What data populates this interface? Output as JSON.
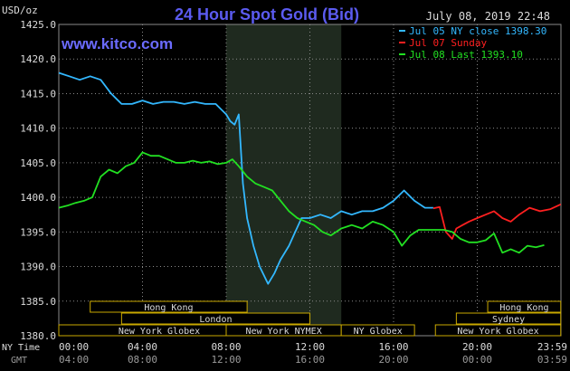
{
  "header": {
    "title": "24 Hour Spot Gold (Bid)",
    "unit": "USD/oz",
    "datetime": "July 08, 2019 22:48",
    "brand": "www.kitco.com"
  },
  "colors": {
    "background": "#000000",
    "grid": "#8a8a8a",
    "text": "#dcdcdc",
    "blue": "#33b8ff",
    "red": "#ff2020",
    "green": "#22e022",
    "shade": "#1f2a1f",
    "market_box": "#c9a800"
  },
  "chart_data": {
    "type": "line",
    "title": "24 Hour Spot Gold (Bid)",
    "ylabel": "USD/oz",
    "ylim": [
      1380,
      1425
    ],
    "yticks": [
      "1425.0",
      "1420.0",
      "1415.0",
      "1410.0",
      "1405.0",
      "1400.0",
      "1395.0",
      "1390.0",
      "1385.0",
      "1380.0"
    ],
    "xlim": [
      0,
      24
    ],
    "xticks_ny": [
      "00:00",
      "04:00",
      "08:00",
      "12:00",
      "16:00",
      "20:00",
      "23:59"
    ],
    "xticks_gmt": [
      "04:00",
      "08:00",
      "12:00",
      "16:00",
      "20:00",
      "00:00",
      "03:59"
    ],
    "xaxis_labels": [
      "NY Time",
      "GMT"
    ],
    "grid": true,
    "legend_position": "top-right",
    "series": [
      {
        "name": "Jul 05 NY close 1398.30",
        "color": "#33b8ff",
        "x": [
          0,
          0.5,
          1,
          1.5,
          2,
          2.5,
          3,
          3.5,
          4,
          4.5,
          5,
          5.5,
          6,
          6.5,
          7,
          7.5,
          8,
          8.2,
          8.4,
          8.6,
          8.8,
          9,
          9.3,
          9.6,
          10,
          10.3,
          10.6,
          11,
          11.3,
          11.6,
          12,
          12.5,
          13,
          13.5,
          14,
          14.5,
          15,
          15.5,
          16,
          16.5,
          17,
          17.5,
          17.9
        ],
        "y": [
          1418.0,
          1417.5,
          1417.0,
          1417.5,
          1417.0,
          1415.0,
          1413.5,
          1413.5,
          1414.0,
          1413.5,
          1413.8,
          1413.8,
          1413.5,
          1413.8,
          1413.5,
          1413.5,
          1412.0,
          1411.0,
          1410.5,
          1412.0,
          1402.0,
          1397.0,
          1393.0,
          1390.0,
          1387.5,
          1389.0,
          1391.0,
          1393.0,
          1395.0,
          1397.0,
          1397.0,
          1397.5,
          1397.0,
          1398.0,
          1397.5,
          1398.0,
          1398.0,
          1398.5,
          1399.5,
          1401.0,
          1399.5,
          1398.5,
          1398.5
        ]
      },
      {
        "name": "Jul 07 Sunday",
        "color": "#ff2020",
        "x": [
          17.9,
          18.2,
          18.5,
          18.8,
          19.0,
          19.3,
          19.6,
          20.0,
          20.4,
          20.8,
          21.2,
          21.6,
          22.0,
          22.5,
          23.0,
          23.5,
          23.99
        ],
        "y": [
          1398.4,
          1398.6,
          1395.0,
          1394.0,
          1395.5,
          1396.0,
          1396.5,
          1397.0,
          1397.5,
          1398.0,
          1397.0,
          1396.5,
          1397.5,
          1398.5,
          1398.0,
          1398.3,
          1399.0
        ]
      },
      {
        "name": "Jul 08 Last 1393.10",
        "color": "#22e022",
        "x": [
          0,
          0.4,
          0.8,
          1.2,
          1.6,
          2.0,
          2.4,
          2.8,
          3.2,
          3.6,
          4.0,
          4.4,
          4.8,
          5.2,
          5.6,
          6.0,
          6.4,
          6.8,
          7.2,
          7.6,
          8.0,
          8.3,
          8.6,
          9.0,
          9.4,
          9.8,
          10.2,
          10.6,
          11.0,
          11.4,
          11.8,
          12.2,
          12.6,
          13.0,
          13.5,
          14.0,
          14.5,
          15.0,
          15.5,
          16.0,
          16.4,
          16.8,
          17.2,
          17.6,
          18.0,
          18.4,
          18.8,
          19.2,
          19.6,
          20.0,
          20.4,
          20.8,
          21.2,
          21.6,
          22.0,
          22.4,
          22.8,
          23.2
        ],
        "y": [
          1398.5,
          1398.8,
          1399.2,
          1399.5,
          1400.0,
          1403.0,
          1404.0,
          1403.5,
          1404.5,
          1405.0,
          1406.5,
          1406.0,
          1406.0,
          1405.5,
          1405.0,
          1405.0,
          1405.3,
          1405.0,
          1405.2,
          1404.8,
          1405.0,
          1405.5,
          1404.5,
          1403.0,
          1402.0,
          1401.5,
          1401.0,
          1399.5,
          1398.0,
          1397.0,
          1396.5,
          1396.0,
          1395.0,
          1394.5,
          1395.5,
          1396.0,
          1395.5,
          1396.5,
          1396.0,
          1395.0,
          1393.0,
          1394.5,
          1395.3,
          1395.3,
          1395.3,
          1395.3,
          1395.0,
          1394.0,
          1393.5,
          1393.5,
          1393.8,
          1394.8,
          1392.0,
          1392.5,
          1392.0,
          1393.0,
          1392.8,
          1393.1
        ]
      }
    ],
    "shaded_region": [
      8.0,
      13.5
    ],
    "markets": [
      {
        "label": "Hong Kong",
        "start": 1.5,
        "end": 9.0,
        "row": 0
      },
      {
        "label": "London",
        "start": 3.0,
        "end": 12.0,
        "row": 1
      },
      {
        "label": "New York Globex",
        "start": 0,
        "end": 9.6,
        "row": 2
      },
      {
        "label": "New York NYMEX",
        "start": 8.0,
        "end": 13.5,
        "row": 2
      },
      {
        "label": "NY Globex",
        "start": 13.5,
        "end": 17.0,
        "row": 2
      },
      {
        "label": "Hong Kong",
        "start": 20.5,
        "end": 23.99,
        "row": 0
      },
      {
        "label": "Sydney",
        "start": 19.0,
        "end": 23.99,
        "row": 1
      },
      {
        "label": "New York Globex",
        "start": 18.0,
        "end": 23.99,
        "row": 2
      }
    ]
  }
}
